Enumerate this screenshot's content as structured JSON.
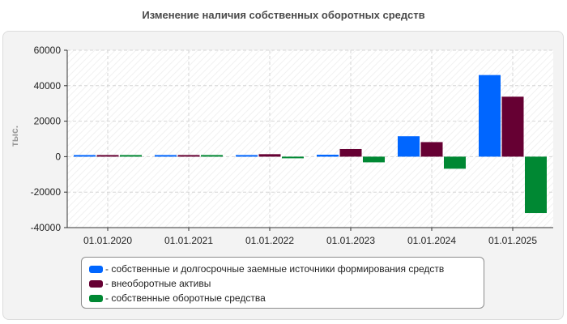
{
  "chart_data": {
    "type": "bar",
    "title": "Изменение наличия собственных оборотных средств",
    "ylabel": "тыс.",
    "xlabel": "",
    "categories": [
      "01.01.2020",
      "01.01.2021",
      "01.01.2022",
      "01.01.2023",
      "01.01.2024",
      "01.01.2025"
    ],
    "ylim": [
      -40000,
      60000
    ],
    "yticks": [
      "60000",
      "40000",
      "20000",
      "0",
      "-20000",
      "-40000"
    ],
    "grid": true,
    "legend_position": "bottom",
    "series": [
      {
        "name": "собственные и долгосрочные заемные источники формирования средств",
        "color": "#0066ff",
        "values": [
          500,
          900,
          500,
          1100,
          11500,
          46000
        ]
      },
      {
        "name": "внеоборотные активы",
        "color": "#660033",
        "values": [
          300,
          400,
          1400,
          4300,
          8200,
          33800
        ]
      },
      {
        "name": "собственные оборотные средства",
        "color": "#008833",
        "values": [
          800,
          500,
          -400,
          -3200,
          -6800,
          -31800
        ]
      }
    ]
  }
}
